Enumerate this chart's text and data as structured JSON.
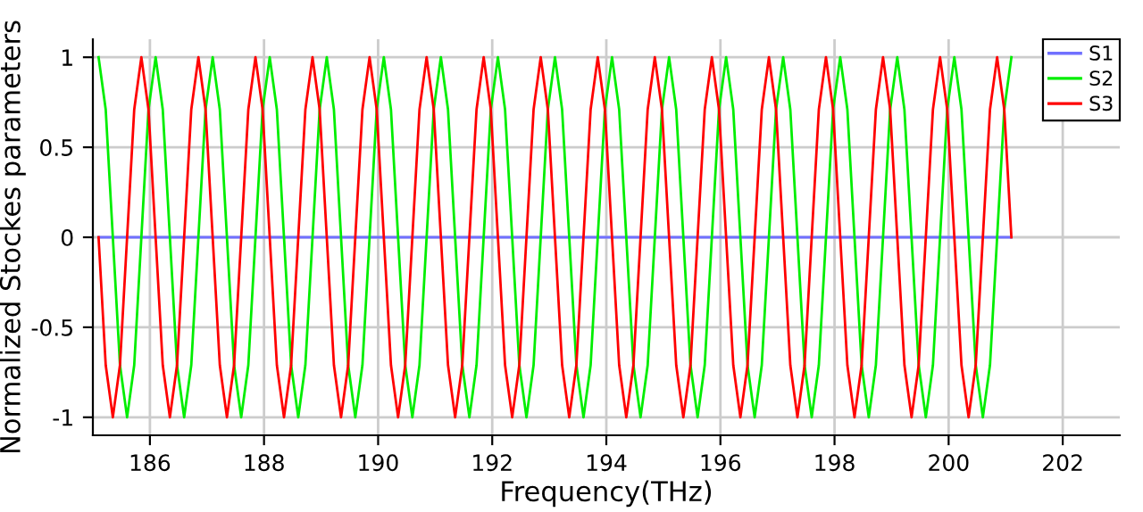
{
  "chart_data": {
    "type": "line",
    "xlabel": "Frequency(THz)",
    "ylabel": "Normalized Stockes parameters",
    "x": [
      185.1,
      185.225,
      185.35,
      185.475,
      185.6,
      185.725,
      185.85,
      185.975,
      186.1,
      186.225,
      186.35,
      186.475,
      186.6,
      186.725,
      186.85,
      186.975,
      187.1,
      187.225,
      187.35,
      187.475,
      187.6,
      187.725,
      187.85,
      187.975,
      188.1,
      188.225,
      188.35,
      188.475,
      188.6,
      188.725,
      188.85,
      188.975,
      189.1,
      189.225,
      189.35,
      189.475,
      189.6,
      189.725,
      189.85,
      189.975,
      190.1,
      190.225,
      190.35,
      190.475,
      190.6,
      190.725,
      190.85,
      190.975,
      191.1,
      191.225,
      191.35,
      191.475,
      191.6,
      191.725,
      191.85,
      191.975,
      192.1,
      192.225,
      192.35,
      192.475,
      192.6,
      192.725,
      192.85,
      192.975,
      193.1,
      193.225,
      193.35,
      193.475,
      193.6,
      193.725,
      193.85,
      193.975,
      194.1,
      194.225,
      194.35,
      194.475,
      194.6,
      194.725,
      194.85,
      194.975,
      195.1,
      195.225,
      195.35,
      195.475,
      195.6,
      195.725,
      195.85,
      195.975,
      196.1,
      196.225,
      196.35,
      196.475,
      196.6,
      196.725,
      196.85,
      196.975,
      197.1,
      197.225,
      197.35,
      197.475,
      197.6,
      197.725,
      197.85,
      197.975,
      198.1,
      198.225,
      198.35,
      198.475,
      198.6,
      198.725,
      198.85,
      198.975,
      199.1,
      199.225,
      199.35,
      199.475,
      199.6,
      199.725,
      199.85,
      199.975,
      200.1,
      200.225,
      200.35,
      200.475,
      200.6,
      200.725,
      200.85,
      200.975,
      201.1
    ],
    "series": [
      {
        "name": "S1",
        "color": "#7070ff",
        "values": [
          0,
          0,
          0,
          0,
          0,
          0,
          0,
          0,
          0,
          0,
          0,
          0,
          0,
          0,
          0,
          0,
          0,
          0,
          0,
          0,
          0,
          0,
          0,
          0,
          0,
          0,
          0,
          0,
          0,
          0,
          0,
          0,
          0,
          0,
          0,
          0,
          0,
          0,
          0,
          0,
          0,
          0,
          0,
          0,
          0,
          0,
          0,
          0,
          0,
          0,
          0,
          0,
          0,
          0,
          0,
          0,
          0,
          0,
          0,
          0,
          0,
          0,
          0,
          0,
          0,
          0,
          0,
          0,
          0,
          0,
          0,
          0,
          0,
          0,
          0,
          0,
          0,
          0,
          0,
          0,
          0,
          0,
          0,
          0,
          0,
          0,
          0,
          0,
          0,
          0,
          0,
          0,
          0,
          0,
          0,
          0,
          0,
          0,
          0,
          0,
          0,
          0,
          0,
          0,
          0,
          0,
          0,
          0,
          0,
          0,
          0,
          0,
          0,
          0,
          0,
          0,
          0,
          0,
          0,
          0,
          0,
          0,
          0,
          0,
          0,
          0,
          0,
          0,
          0
        ]
      },
      {
        "name": "S2",
        "color": "#00ee00",
        "values": [
          1,
          0.71,
          0,
          -0.71,
          -1,
          -0.71,
          0,
          0.71,
          1,
          0.71,
          0,
          -0.71,
          -1,
          -0.71,
          0,
          0.71,
          1,
          0.71,
          0,
          -0.71,
          -1,
          -0.71,
          0,
          0.71,
          1,
          0.71,
          0,
          -0.71,
          -1,
          -0.71,
          0,
          0.71,
          1,
          0.71,
          0,
          -0.71,
          -1,
          -0.71,
          0,
          0.71,
          1,
          0.71,
          0,
          -0.71,
          -1,
          -0.71,
          0,
          0.71,
          1,
          0.71,
          0,
          -0.71,
          -1,
          -0.71,
          0,
          0.71,
          1,
          0.71,
          0,
          -0.71,
          -1,
          -0.71,
          0,
          0.71,
          1,
          0.71,
          0,
          -0.71,
          -1,
          -0.71,
          0,
          0.71,
          1,
          0.71,
          0,
          -0.71,
          -1,
          -0.71,
          0,
          0.71,
          1,
          0.71,
          0,
          -0.71,
          -1,
          -0.71,
          0,
          0.71,
          1,
          0.71,
          0,
          -0.71,
          -1,
          -0.71,
          0,
          0.71,
          1,
          0.71,
          0,
          -0.71,
          -1,
          -0.71,
          0,
          0.71,
          1,
          0.71,
          0,
          -0.71,
          -1,
          -0.71,
          0,
          0.71,
          1,
          0.71,
          0,
          -0.71,
          -1,
          -0.71,
          0,
          0.71,
          1,
          0.71,
          0,
          -0.71,
          -1,
          -0.71,
          0,
          0.71,
          1
        ]
      },
      {
        "name": "S3",
        "color": "#ff0000",
        "values": [
          0,
          -0.71,
          -1,
          -0.71,
          0,
          0.71,
          1,
          0.71,
          0,
          -0.71,
          -1,
          -0.71,
          0,
          0.71,
          1,
          0.71,
          0,
          -0.71,
          -1,
          -0.71,
          0,
          0.71,
          1,
          0.71,
          0,
          -0.71,
          -1,
          -0.71,
          0,
          0.71,
          1,
          0.71,
          0,
          -0.71,
          -1,
          -0.71,
          0,
          0.71,
          1,
          0.71,
          0,
          -0.71,
          -1,
          -0.71,
          0,
          0.71,
          1,
          0.71,
          0,
          -0.71,
          -1,
          -0.71,
          0,
          0.71,
          1,
          0.71,
          0,
          -0.71,
          -1,
          -0.71,
          0,
          0.71,
          1,
          0.71,
          0,
          -0.71,
          -1,
          -0.71,
          0,
          0.71,
          1,
          0.71,
          0,
          -0.71,
          -1,
          -0.71,
          0,
          0.71,
          1,
          0.71,
          0,
          -0.71,
          -1,
          -0.71,
          0,
          0.71,
          1,
          0.71,
          0,
          -0.71,
          -1,
          -0.71,
          0,
          0.71,
          1,
          0.71,
          0,
          -0.71,
          -1,
          -0.71,
          0,
          0.71,
          1,
          0.71,
          0,
          -0.71,
          -1,
          -0.71,
          0,
          0.71,
          1,
          0.71,
          0,
          -0.71,
          -1,
          -0.71,
          0,
          0.71,
          1,
          0.71,
          0,
          -0.71,
          -1,
          -0.71,
          0,
          0.71,
          1,
          0.71,
          0
        ]
      }
    ],
    "xlim": [
      185,
      203
    ],
    "xticks": [
      186,
      188,
      190,
      192,
      194,
      196,
      198,
      200,
      202
    ],
    "ylim": [
      -1.1,
      1.1
    ],
    "yticks": [
      -1,
      -0.5,
      0,
      0.5,
      1
    ],
    "grid": true,
    "legend": "top right",
    "marker": "none",
    "line_style": "solid"
  }
}
